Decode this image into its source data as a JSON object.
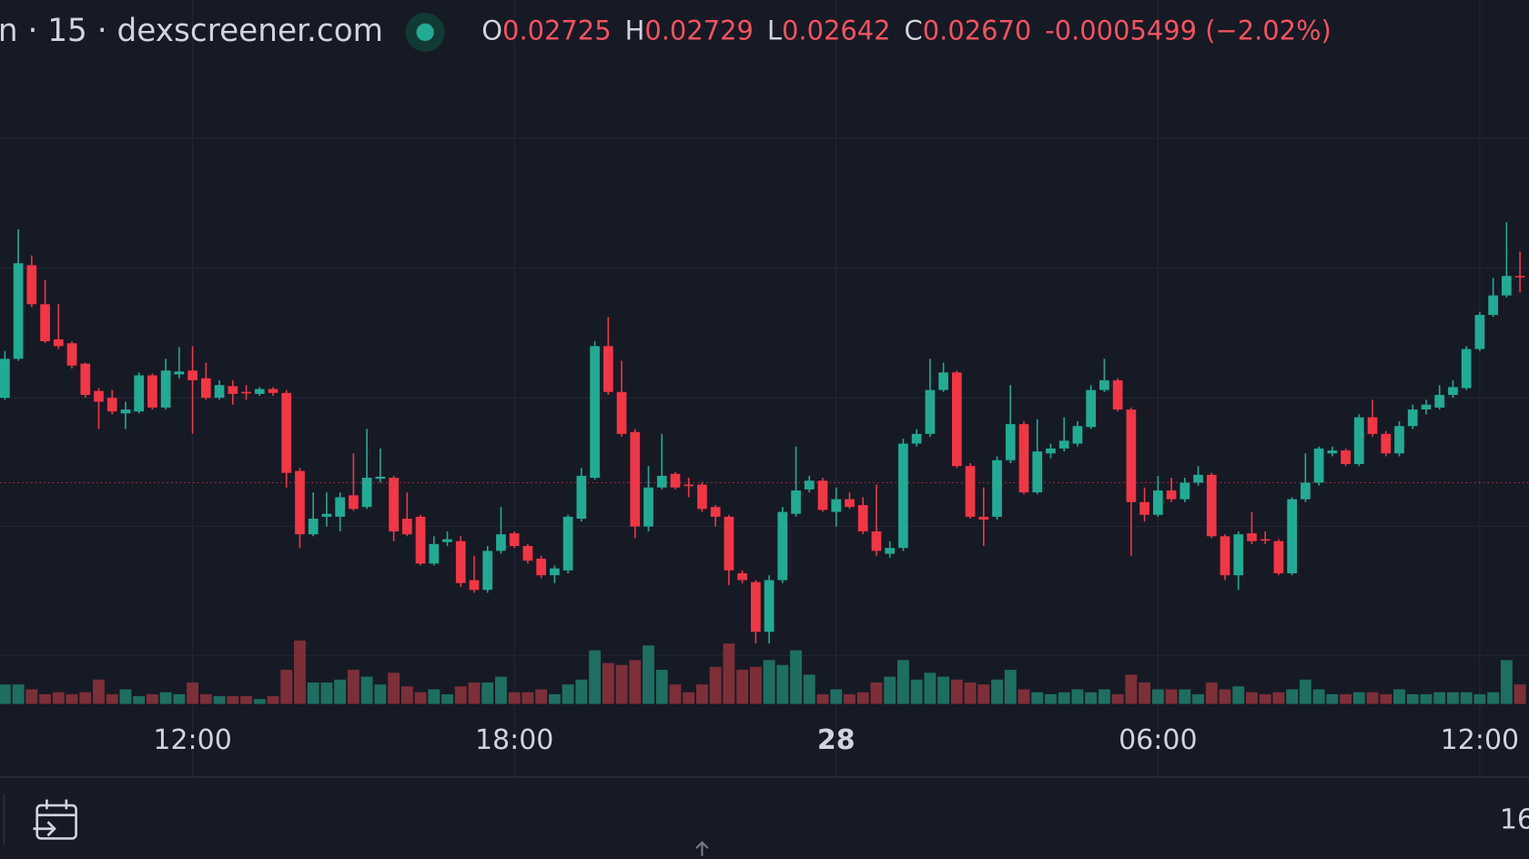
{
  "chart_data": {
    "type": "candlestick",
    "title": "n · 15 · dexscreener.com",
    "ohlc_legend": [
      {
        "key": "O",
        "value": "0.02725"
      },
      {
        "key": "H",
        "value": "0.02729"
      },
      {
        "key": "L",
        "value": "0.02642"
      },
      {
        "key": "C",
        "value": "0.02670"
      }
    ],
    "change": "-0.0005499 (−2.02%)",
    "footer_label": "16",
    "categories": [
      null,
      null,
      null,
      null,
      null,
      null,
      null,
      null,
      null,
      null,
      null,
      null,
      null,
      null,
      "12:00",
      null,
      null,
      null,
      null,
      null,
      null,
      null,
      null,
      null,
      null,
      null,
      null,
      null,
      null,
      null,
      null,
      null,
      null,
      null,
      null,
      null,
      null,
      null,
      "18:00",
      null,
      null,
      null,
      null,
      null,
      null,
      null,
      null,
      null,
      null,
      null,
      null,
      null,
      null,
      null,
      null,
      null,
      null,
      null,
      null,
      null,
      null,
      null,
      "28",
      null,
      null,
      null,
      null,
      null,
      null,
      null,
      null,
      null,
      null,
      null,
      null,
      null,
      null,
      null,
      null,
      null,
      null,
      null,
      null,
      null,
      null,
      null,
      "06:00",
      null,
      null,
      null,
      null,
      null,
      null,
      null,
      null,
      null,
      null,
      null,
      null,
      null,
      null,
      null,
      null,
      null,
      null,
      null,
      null,
      null,
      null,
      null,
      "12:00",
      null,
      null,
      null
    ],
    "open": [
      0.02716,
      0.02736,
      0.02784,
      0.02764,
      0.02746,
      0.02744,
      0.027335,
      0.027195,
      0.02716,
      0.02708,
      0.02709,
      0.027275,
      0.02711,
      0.02728,
      0.0273,
      0.02726,
      0.02716,
      0.02722,
      0.02719,
      0.02718,
      0.027205,
      0.027185,
      0.026785,
      0.02646,
      0.02655,
      0.02655,
      0.02666,
      0.0266,
      0.026745,
      0.02675,
      0.02654,
      0.02655,
      0.02631,
      0.02642,
      0.026425,
      0.026225,
      0.026175,
      0.026375,
      0.026465,
      0.0264,
      0.026335,
      0.02625,
      0.026275,
      0.02654,
      0.02675,
      0.027425,
      0.02719,
      0.026985,
      0.0265,
      0.0267,
      0.02677,
      0.026715,
      0.026715,
      0.0266,
      0.02655,
      0.02626,
      0.026215,
      0.02596,
      0.026225,
      0.026565,
      0.02669,
      0.026735,
      0.026575,
      0.02664,
      0.02661,
      0.026475,
      0.02636,
      0.02639,
      0.026925,
      0.026975,
      0.0272,
      0.02729,
      0.02681,
      0.02655,
      0.02655,
      0.02684,
      0.027025,
      0.026675,
      0.026875,
      0.0269,
      0.026925,
      0.02701,
      0.0272,
      0.02725,
      0.0271,
      0.026625,
      0.02656,
      0.026685,
      0.02664,
      0.026725,
      0.026765,
      0.02645,
      0.02625,
      0.026465,
      0.026435,
      0.026425,
      0.02626,
      0.02664,
      0.026725,
      0.026875,
      0.02689,
      0.02682,
      0.02706,
      0.026975,
      0.026875,
      0.027015,
      0.0271,
      0.02711,
      0.027175,
      0.02721,
      0.02741,
      0.027585,
      0.027685,
      0.027785
    ],
    "high": [
      0.0274,
      0.028025,
      0.02789,
      0.027765,
      0.02764,
      0.02745,
      0.02734,
      0.02721,
      0.0272,
      0.02714,
      0.02729,
      0.027285,
      0.02736,
      0.02742,
      0.027425,
      0.02734,
      0.02725,
      0.02725,
      0.027225,
      0.027215,
      0.027215,
      0.0272,
      0.0268,
      0.026675,
      0.026675,
      0.026675,
      0.026875,
      0.027,
      0.0269,
      0.02676,
      0.026675,
      0.02656,
      0.02645,
      0.026475,
      0.02645,
      0.02635,
      0.0264,
      0.0266,
      0.026475,
      0.02641,
      0.02635,
      0.0263,
      0.02656,
      0.0268,
      0.02745,
      0.027575,
      0.02735,
      0.027,
      0.02681,
      0.026975,
      0.02678,
      0.02675,
      0.026725,
      0.02661,
      0.02656,
      0.026275,
      0.026225,
      0.02625,
      0.0266,
      0.02691,
      0.02676,
      0.02675,
      0.0267,
      0.026675,
      0.02665,
      0.026715,
      0.026425,
      0.02695,
      0.027,
      0.02736,
      0.02734,
      0.0273,
      0.026825,
      0.0267,
      0.02686,
      0.027225,
      0.02704,
      0.02705,
      0.026925,
      0.02706,
      0.02704,
      0.027225,
      0.02736,
      0.02726,
      0.02711,
      0.0267,
      0.02676,
      0.02675,
      0.02675,
      0.02681,
      0.026775,
      0.02646,
      0.026475,
      0.026575,
      0.026475,
      0.026435,
      0.02665,
      0.026875,
      0.02691,
      0.02691,
      0.0269,
      0.027075,
      0.02715,
      0.02699,
      0.02704,
      0.027125,
      0.02715,
      0.027225,
      0.02725,
      0.027425,
      0.0276,
      0.027775,
      0.02806,
      0.02791
    ],
    "low": [
      0.02715,
      0.02735,
      0.027625,
      0.02744,
      0.02741,
      0.02731,
      0.02716,
      0.027,
      0.027075,
      0.027,
      0.02708,
      0.0271,
      0.0271,
      0.02726,
      0.026975,
      0.02715,
      0.02715,
      0.027125,
      0.02715,
      0.02717,
      0.02717,
      0.0267,
      0.02639,
      0.02645,
      0.0265,
      0.026475,
      0.02658,
      0.02659,
      0.026725,
      0.026425,
      0.02645,
      0.0263,
      0.0263,
      0.0264,
      0.02619,
      0.02616,
      0.02616,
      0.02636,
      0.02639,
      0.02631,
      0.026235,
      0.02621,
      0.02626,
      0.026525,
      0.02674,
      0.027175,
      0.02696,
      0.02644,
      0.026475,
      0.02669,
      0.02669,
      0.02665,
      0.026575,
      0.0265,
      0.0262,
      0.02621,
      0.0259,
      0.0259,
      0.02621,
      0.02655,
      0.026675,
      0.026575,
      0.0265,
      0.02659,
      0.02646,
      0.02635,
      0.02634,
      0.026375,
      0.02691,
      0.02696,
      0.02719,
      0.0268,
      0.02654,
      0.0264,
      0.026535,
      0.026825,
      0.026665,
      0.026665,
      0.02685,
      0.026885,
      0.02691,
      0.027,
      0.02719,
      0.02709,
      0.02635,
      0.026525,
      0.02655,
      0.026625,
      0.026625,
      0.02671,
      0.02644,
      0.026225,
      0.026175,
      0.02641,
      0.02641,
      0.02625,
      0.02625,
      0.026625,
      0.02671,
      0.02686,
      0.02681,
      0.02681,
      0.02696,
      0.02686,
      0.02686,
      0.027,
      0.027075,
      0.0271,
      0.02716,
      0.0272,
      0.0274,
      0.027575,
      0.027675,
      0.0277
    ],
    "close": [
      0.02736,
      0.02785,
      0.02764,
      0.02745,
      0.027425,
      0.027325,
      0.027175,
      0.02714,
      0.02709,
      0.0271,
      0.027275,
      0.02711,
      0.0273,
      0.027295,
      0.02725,
      0.02716,
      0.027225,
      0.02718,
      0.027185,
      0.027205,
      0.027185,
      0.026775,
      0.02646,
      0.02654,
      0.026565,
      0.02665,
      0.02659,
      0.02675,
      0.026755,
      0.026475,
      0.02646,
      0.02631,
      0.02641,
      0.026435,
      0.02621,
      0.026175,
      0.026375,
      0.02646,
      0.0264,
      0.026325,
      0.02625,
      0.026285,
      0.02655,
      0.02676,
      0.027425,
      0.02719,
      0.026975,
      0.0265,
      0.0267,
      0.02676,
      0.0267,
      0.02671,
      0.02659,
      0.02655,
      0.026275,
      0.026225,
      0.02596,
      0.026225,
      0.026575,
      0.026685,
      0.026735,
      0.026585,
      0.02664,
      0.0266,
      0.026475,
      0.026375,
      0.02639,
      0.026925,
      0.026975,
      0.0272,
      0.02729,
      0.02681,
      0.02655,
      0.026535,
      0.02684,
      0.027025,
      0.026675,
      0.026885,
      0.0269,
      0.02694,
      0.027015,
      0.0272,
      0.02725,
      0.0271,
      0.026625,
      0.02656,
      0.026685,
      0.02664,
      0.026725,
      0.026765,
      0.02645,
      0.02625,
      0.02646,
      0.026425,
      0.02643,
      0.02626,
      0.02664,
      0.026725,
      0.0269,
      0.02689,
      0.02682,
      0.02706,
      0.026975,
      0.026875,
      0.027015,
      0.0271,
      0.027125,
      0.027175,
      0.027215,
      0.02741,
      0.027585,
      0.027685,
      0.027785,
      0.02778
    ],
    "volume": [
      20,
      20,
      15,
      10,
      12,
      10,
      12,
      25,
      10,
      15,
      8,
      10,
      12,
      10,
      22,
      10,
      8,
      8,
      8,
      5,
      8,
      35,
      65,
      22,
      22,
      25,
      35,
      28,
      20,
      32,
      18,
      12,
      15,
      10,
      18,
      22,
      22,
      28,
      12,
      12,
      15,
      10,
      20,
      25,
      55,
      42,
      40,
      45,
      60,
      35,
      20,
      12,
      20,
      38,
      62,
      35,
      38,
      45,
      40,
      55,
      30,
      10,
      15,
      10,
      12,
      22,
      28,
      45,
      25,
      32,
      28,
      25,
      22,
      20,
      25,
      35,
      15,
      12,
      10,
      12,
      15,
      12,
      15,
      10,
      30,
      22,
      15,
      15,
      15,
      10,
      22,
      15,
      18,
      12,
      10,
      12,
      15,
      25,
      15,
      10,
      10,
      12,
      12,
      10,
      15,
      10,
      10,
      12,
      12,
      12,
      10,
      12,
      45,
      20
    ],
    "ylim": [
      0.0256,
      0.0292
    ],
    "yticks": [
      0.02584,
      0.0265,
      0.02716,
      0.027825,
      0.02849
    ],
    "volume_ylim": [
      0,
      100
    ],
    "price_line": 0.026725,
    "grid": true,
    "up_color": "#22ab94",
    "down_color": "#f23645",
    "up_volume_color": "#1f6e62",
    "down_volume_color": "#7d2f38",
    "legend_value_color": "#f7525f"
  }
}
